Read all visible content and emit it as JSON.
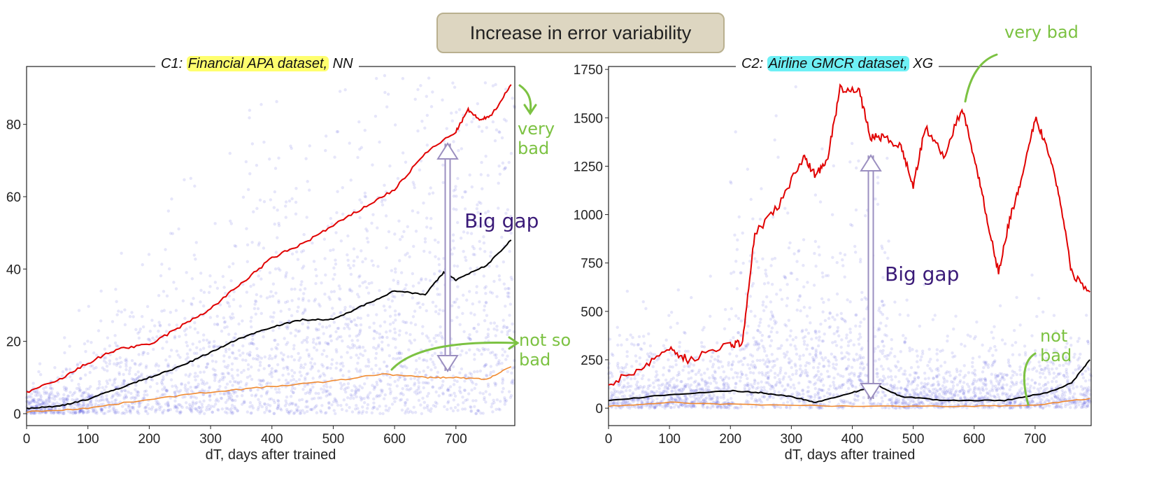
{
  "banner": "Increase in error variability",
  "colors": {
    "scatter": "#3a3ad8",
    "red": "#e00000",
    "black": "#000000",
    "orange": "#f08a30",
    "annot_green": "#7cc242",
    "annot_purple": "#3a1a78",
    "gap_arrow": "#9b8fc0"
  },
  "chart_data": [
    {
      "type": "line",
      "title_prefix": "C1:",
      "title_highlight": "Financial APA dataset,",
      "title_suffix": " NN",
      "highlight_color": "#ffff6e",
      "xlabel": "dT, days after trained",
      "ylabel": "",
      "xlim": [
        0,
        796
      ],
      "ylim": [
        -3.3,
        96
      ],
      "xticks": [
        0,
        100,
        200,
        300,
        400,
        500,
        600,
        700
      ],
      "yticks": [
        0,
        20,
        40,
        60,
        80
      ],
      "background": "scatter of individual errors (blue, semi-transparent)",
      "series": [
        {
          "color": "#e00000",
          "x": [
            0,
            50,
            100,
            150,
            200,
            250,
            300,
            350,
            400,
            450,
            500,
            550,
            600,
            650,
            700,
            720,
            740,
            760,
            790
          ],
          "y": [
            6,
            9,
            14,
            18,
            19,
            24,
            29,
            36,
            43,
            47,
            52,
            57,
            62,
            72,
            78,
            84,
            81,
            83,
            91
          ]
        },
        {
          "color": "#000000",
          "x": [
            0,
            50,
            100,
            150,
            200,
            250,
            300,
            350,
            400,
            450,
            500,
            550,
            600,
            650,
            680,
            700,
            750,
            790
          ],
          "y": [
            1.5,
            2,
            4,
            7,
            10,
            13,
            17,
            21,
            24,
            26,
            26,
            30,
            34,
            33,
            39,
            37,
            41,
            48
          ]
        },
        {
          "color": "#f08a30",
          "x": [
            0,
            100,
            200,
            300,
            400,
            500,
            580,
            650,
            700,
            750,
            790
          ],
          "y": [
            0.5,
            1.5,
            4,
            6,
            7.5,
            9,
            11,
            10,
            10,
            9.5,
            13
          ]
        }
      ],
      "annotations": [
        {
          "text": "very bad",
          "color": "#7cc242"
        },
        {
          "text": "not so bad",
          "color": "#7cc242"
        },
        {
          "text": "Big gap",
          "color": "#3a1a78"
        }
      ]
    },
    {
      "type": "line",
      "title_prefix": "C2:",
      "title_highlight": "Airline GMCR dataset,",
      "title_suffix": " XG",
      "highlight_color": "#6ef0f5",
      "xlabel": "dT, days after trained",
      "ylabel": "",
      "xlim": [
        0,
        792
      ],
      "ylim": [
        -90,
        1765
      ],
      "xticks": [
        0,
        100,
        200,
        300,
        400,
        500,
        600,
        700
      ],
      "yticks": [
        0,
        250,
        500,
        750,
        1000,
        1250,
        1500,
        1750
      ],
      "background": "scatter of individual errors (blue, semi-transparent)",
      "series": [
        {
          "color": "#e00000",
          "x": [
            0,
            50,
            100,
            130,
            200,
            220,
            240,
            280,
            320,
            340,
            360,
            380,
            410,
            430,
            450,
            480,
            500,
            520,
            550,
            580,
            600,
            620,
            640,
            660,
            680,
            700,
            720,
            740,
            760,
            790
          ],
          "y": [
            120,
            200,
            310,
            250,
            330,
            340,
            900,
            1050,
            1300,
            1200,
            1300,
            1650,
            1650,
            1400,
            1400,
            1350,
            1150,
            1450,
            1300,
            1550,
            1300,
            1000,
            700,
            1000,
            1200,
            1500,
            1350,
            1100,
            700,
            600
          ]
        },
        {
          "color": "#000000",
          "x": [
            0,
            100,
            200,
            250,
            300,
            340,
            400,
            440,
            480,
            550,
            650,
            720,
            760,
            790
          ],
          "y": [
            40,
            70,
            90,
            80,
            60,
            30,
            80,
            120,
            60,
            40,
            40,
            80,
            130,
            250
          ]
        },
        {
          "color": "#f08a30",
          "x": [
            0,
            100,
            200,
            400,
            600,
            700,
            790
          ],
          "y": [
            10,
            30,
            20,
            10,
            10,
            15,
            50
          ]
        }
      ],
      "annotations": [
        {
          "text": "very bad",
          "color": "#7cc242"
        },
        {
          "text": "not bad",
          "color": "#7cc242"
        },
        {
          "text": "Big gap",
          "color": "#3a1a78"
        }
      ]
    }
  ]
}
